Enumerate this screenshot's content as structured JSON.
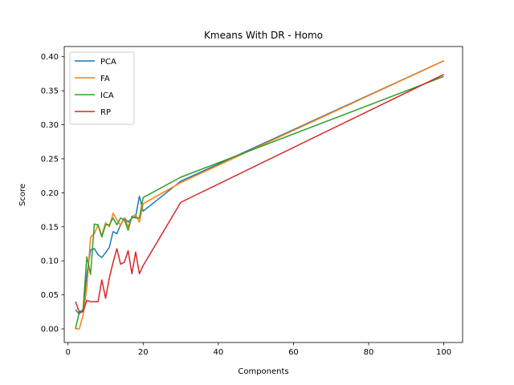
{
  "chart_data": {
    "type": "line",
    "title": "Kmeans With DR - Homo",
    "xlabel": "Components",
    "ylabel": "Score",
    "xlim": [
      -1,
      105
    ],
    "ylim": [
      -0.02,
      0.415
    ],
    "xticks": [
      0,
      20,
      40,
      60,
      80,
      100
    ],
    "yticks": [
      0.0,
      0.05,
      0.1,
      0.15,
      0.2,
      0.25,
      0.3,
      0.35,
      0.4
    ],
    "ytick_labels": [
      "0.00",
      "0.05",
      "0.10",
      "0.15",
      "0.20",
      "0.25",
      "0.30",
      "0.35",
      "0.40"
    ],
    "xtick_labels": [
      "0",
      "20",
      "40",
      "60",
      "80",
      "100"
    ],
    "grid": false,
    "legend_position": "top-left",
    "x": [
      2,
      3,
      4,
      5,
      6,
      7,
      8,
      9,
      10,
      11,
      12,
      13,
      14,
      15,
      16,
      17,
      18,
      19,
      20,
      30,
      100
    ],
    "series": [
      {
        "name": "PCA",
        "color": "#1f77b4",
        "values": [
          0.028,
          0.022,
          0.028,
          0.08,
          0.116,
          0.118,
          0.109,
          0.105,
          0.112,
          0.12,
          0.143,
          0.14,
          0.153,
          0.163,
          0.157,
          0.163,
          0.165,
          0.195,
          0.173,
          0.217,
          0.394
        ]
      },
      {
        "name": "FA",
        "color": "#ff7f0e",
        "values": [
          0.0,
          0.0,
          0.02,
          0.06,
          0.135,
          0.14,
          0.153,
          0.137,
          0.156,
          0.15,
          0.17,
          0.16,
          0.152,
          0.163,
          0.15,
          0.165,
          0.168,
          0.157,
          0.184,
          0.215,
          0.394
        ]
      },
      {
        "name": "ICA",
        "color": "#2ca02c",
        "values": [
          0.0,
          0.025,
          0.028,
          0.106,
          0.08,
          0.154,
          0.153,
          0.135,
          0.153,
          0.153,
          0.163,
          0.153,
          0.163,
          0.16,
          0.145,
          0.165,
          0.163,
          0.163,
          0.193,
          0.223,
          0.371
        ]
      },
      {
        "name": "RP",
        "color": "#d62728",
        "values": [
          0.04,
          0.025,
          0.025,
          0.042,
          0.04,
          0.04,
          0.04,
          0.072,
          0.045,
          0.075,
          0.098,
          0.118,
          0.095,
          0.098,
          0.115,
          0.081,
          0.113,
          0.081,
          0.093,
          0.186,
          0.374
        ]
      }
    ]
  }
}
